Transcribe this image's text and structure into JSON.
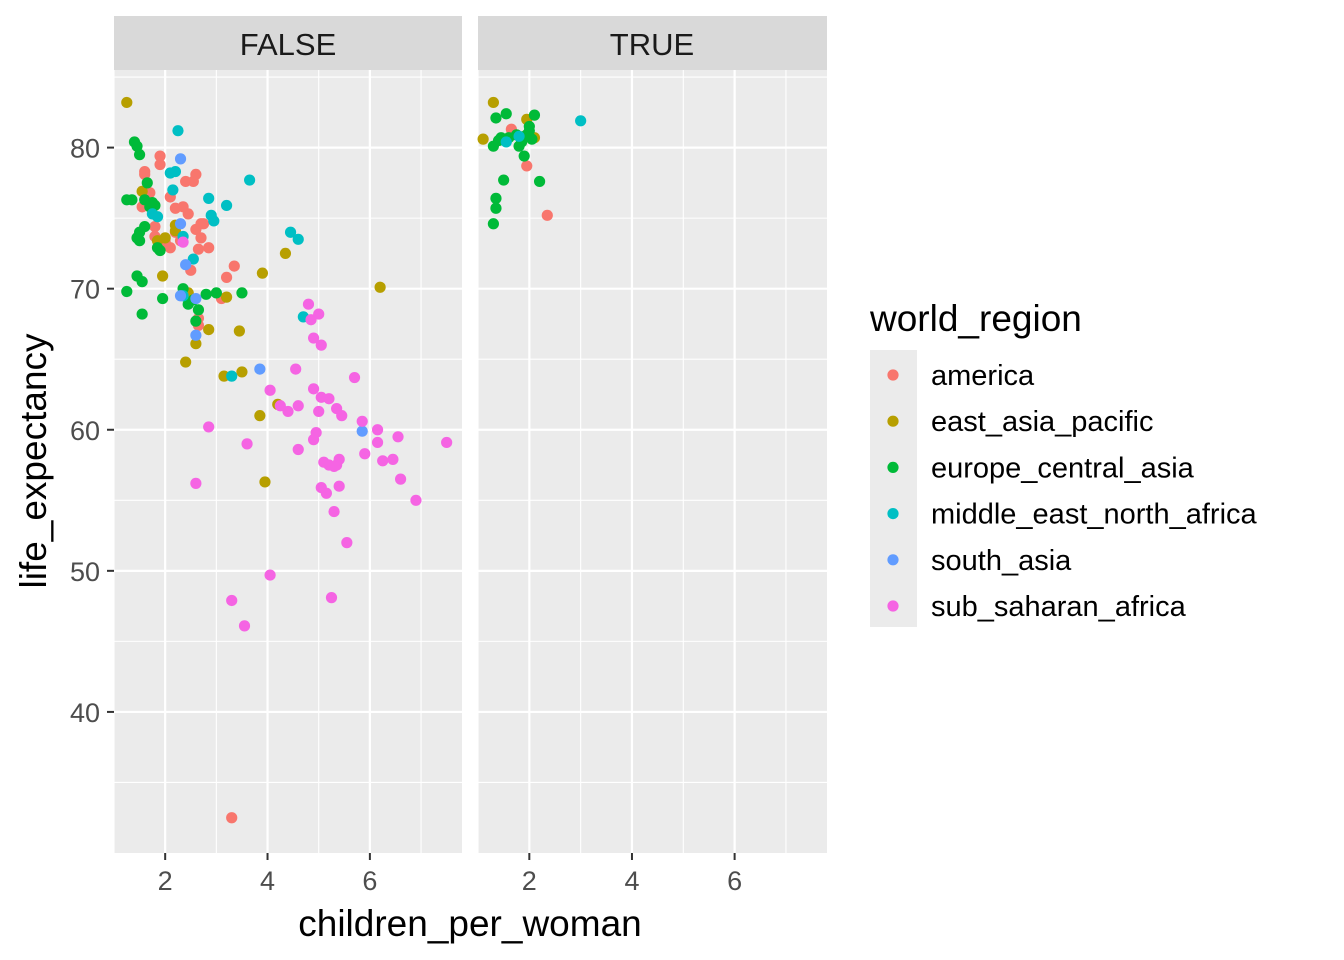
{
  "chart_data": {
    "type": "scatter",
    "xlabel": "children_per_woman",
    "ylabel": "life_expectancy",
    "xlim": [
      1.0,
      7.8
    ],
    "ylim": [
      30.0,
      85.5
    ],
    "x_ticks": [
      2,
      4,
      6
    ],
    "y_ticks": [
      40,
      50,
      60,
      70,
      80
    ],
    "grid": true,
    "legend": {
      "title": "world_region",
      "position": "right"
    },
    "facets": [
      "FALSE",
      "TRUE"
    ],
    "colors": {
      "america": "#F8766D",
      "east_asia_pacific": "#B79F00",
      "europe_central_asia": "#00BA38",
      "middle_east_north_africa": "#00BFC4",
      "south_asia": "#619CFF",
      "sub_saharan_africa": "#F564E3"
    },
    "series": [
      {
        "name": "america",
        "points": [
          [
            1.6,
            78.3
          ],
          [
            1.7,
            76.8
          ],
          [
            1.8,
            74.4
          ],
          [
            1.9,
            78.8
          ],
          [
            1.9,
            79.4
          ],
          [
            2.0,
            73.3
          ],
          [
            2.1,
            76.5
          ],
          [
            2.1,
            72.9
          ],
          [
            2.2,
            74.0
          ],
          [
            2.2,
            75.7
          ],
          [
            2.3,
            73.4
          ],
          [
            2.35,
            75.8
          ],
          [
            2.4,
            77.6
          ],
          [
            2.45,
            75.3
          ],
          [
            2.5,
            71.3
          ],
          [
            2.55,
            77.6
          ],
          [
            2.6,
            78.1
          ],
          [
            2.6,
            74.2
          ],
          [
            2.65,
            72.8
          ],
          [
            2.7,
            74.6
          ],
          [
            2.7,
            73.6
          ],
          [
            2.75,
            74.6
          ],
          [
            2.85,
            72.9
          ],
          [
            2.65,
            67.9
          ],
          [
            2.65,
            67.4
          ],
          [
            3.1,
            69.3
          ],
          [
            3.2,
            70.8
          ],
          [
            3.35,
            71.6
          ],
          [
            3.3,
            32.5
          ],
          [
            1.55,
            75.8
          ],
          [
            1.8,
            73.7
          ],
          [
            1.6,
            78.1
          ],
          [
            1.65,
            81.3
          ],
          [
            1.95,
            78.7
          ],
          [
            2.35,
            75.2
          ]
        ]
      },
      {
        "name": "east_asia_pacific",
        "points": [
          [
            1.25,
            83.2
          ],
          [
            1.55,
            76.9
          ],
          [
            1.85,
            73.4
          ],
          [
            1.95,
            70.9
          ],
          [
            2.0,
            73.6
          ],
          [
            2.2,
            74.1
          ],
          [
            2.2,
            74.5
          ],
          [
            2.4,
            64.8
          ],
          [
            2.45,
            69.7
          ],
          [
            2.6,
            66.1
          ],
          [
            2.85,
            67.1
          ],
          [
            3.15,
            63.8
          ],
          [
            3.2,
            69.4
          ],
          [
            3.45,
            67.0
          ],
          [
            3.5,
            64.1
          ],
          [
            3.85,
            61.0
          ],
          [
            3.9,
            71.1
          ],
          [
            3.95,
            56.3
          ],
          [
            4.2,
            61.8
          ],
          [
            4.35,
            72.5
          ],
          [
            6.2,
            70.1
          ],
          [
            1.1,
            80.6
          ],
          [
            1.3,
            83.2
          ],
          [
            1.9,
            80.8
          ],
          [
            1.95,
            82.0
          ],
          [
            2.1,
            80.7
          ]
        ]
      },
      {
        "name": "europe_central_asia",
        "points": [
          [
            1.25,
            76.3
          ],
          [
            1.25,
            69.8
          ],
          [
            1.35,
            76.3
          ],
          [
            1.4,
            80.4
          ],
          [
            1.45,
            80.1
          ],
          [
            1.45,
            70.9
          ],
          [
            1.45,
            73.6
          ],
          [
            1.5,
            73.4
          ],
          [
            1.5,
            74.0
          ],
          [
            1.5,
            79.5
          ],
          [
            1.55,
            70.5
          ],
          [
            1.55,
            68.2
          ],
          [
            1.6,
            76.3
          ],
          [
            1.6,
            74.4
          ],
          [
            1.65,
            77.5
          ],
          [
            1.7,
            75.8
          ],
          [
            1.75,
            76.1
          ],
          [
            1.8,
            75.9
          ],
          [
            1.85,
            72.9
          ],
          [
            1.9,
            72.7
          ],
          [
            1.95,
            69.3
          ],
          [
            2.35,
            70.0
          ],
          [
            2.45,
            68.9
          ],
          [
            2.55,
            69.2
          ],
          [
            2.6,
            67.7
          ],
          [
            2.65,
            68.5
          ],
          [
            2.8,
            69.6
          ],
          [
            3.0,
            69.7
          ],
          [
            3.5,
            69.7
          ],
          [
            1.3,
            74.6
          ],
          [
            1.35,
            75.7
          ],
          [
            1.35,
            76.4
          ],
          [
            1.3,
            80.1
          ],
          [
            1.35,
            82.1
          ],
          [
            1.4,
            80.5
          ],
          [
            1.45,
            80.7
          ],
          [
            1.5,
            77.7
          ],
          [
            1.55,
            82.4
          ],
          [
            1.6,
            80.7
          ],
          [
            1.75,
            80.9
          ],
          [
            1.8,
            80.1
          ],
          [
            1.85,
            80.4
          ],
          [
            1.9,
            79.4
          ],
          [
            1.95,
            80.9
          ],
          [
            2.0,
            81.2
          ],
          [
            2.0,
            81.5
          ],
          [
            2.1,
            82.3
          ],
          [
            2.2,
            77.6
          ],
          [
            2.05,
            80.6
          ]
        ]
      },
      {
        "name": "middle_east_north_africa",
        "points": [
          [
            1.75,
            75.3
          ],
          [
            1.85,
            75.1
          ],
          [
            2.1,
            78.2
          ],
          [
            2.15,
            77.0
          ],
          [
            2.2,
            78.3
          ],
          [
            2.25,
            81.2
          ],
          [
            2.35,
            73.7
          ],
          [
            2.35,
            69.5
          ],
          [
            2.55,
            72.1
          ],
          [
            2.85,
            76.4
          ],
          [
            2.9,
            75.2
          ],
          [
            2.95,
            74.8
          ],
          [
            3.2,
            75.9
          ],
          [
            3.3,
            63.8
          ],
          [
            3.65,
            77.7
          ],
          [
            4.45,
            74.0
          ],
          [
            4.6,
            73.5
          ],
          [
            4.7,
            68.0
          ],
          [
            1.55,
            80.4
          ],
          [
            1.8,
            80.8
          ],
          [
            3.0,
            81.9
          ]
        ]
      },
      {
        "name": "south_asia",
        "points": [
          [
            2.3,
            79.2
          ],
          [
            2.3,
            74.6
          ],
          [
            2.4,
            71.7
          ],
          [
            2.6,
            69.3
          ],
          [
            2.6,
            66.7
          ],
          [
            3.85,
            64.3
          ],
          [
            5.85,
            59.9
          ],
          [
            2.3,
            69.5
          ]
        ]
      },
      {
        "name": "sub_saharan_africa",
        "points": [
          [
            2.35,
            73.3
          ],
          [
            2.6,
            56.2
          ],
          [
            2.85,
            60.2
          ],
          [
            3.3,
            47.9
          ],
          [
            3.55,
            46.1
          ],
          [
            3.6,
            59.0
          ],
          [
            4.05,
            62.8
          ],
          [
            4.05,
            49.7
          ],
          [
            4.25,
            61.7
          ],
          [
            4.4,
            61.3
          ],
          [
            4.55,
            64.3
          ],
          [
            4.6,
            58.6
          ],
          [
            4.6,
            61.7
          ],
          [
            4.8,
            68.9
          ],
          [
            4.85,
            67.8
          ],
          [
            4.9,
            59.3
          ],
          [
            4.9,
            66.5
          ],
          [
            4.9,
            62.9
          ],
          [
            4.95,
            59.8
          ],
          [
            5.0,
            68.2
          ],
          [
            5.0,
            61.3
          ],
          [
            5.05,
            66.0
          ],
          [
            5.05,
            55.9
          ],
          [
            5.1,
            57.7
          ],
          [
            5.15,
            55.5
          ],
          [
            5.2,
            57.5
          ],
          [
            5.2,
            62.2
          ],
          [
            5.25,
            48.1
          ],
          [
            5.3,
            54.2
          ],
          [
            5.35,
            57.5
          ],
          [
            5.35,
            61.5
          ],
          [
            5.4,
            57.9
          ],
          [
            5.4,
            56.0
          ],
          [
            5.45,
            61.0
          ],
          [
            5.55,
            52.0
          ],
          [
            5.7,
            63.7
          ],
          [
            5.85,
            60.6
          ],
          [
            5.9,
            58.3
          ],
          [
            6.15,
            60.0
          ],
          [
            6.15,
            59.1
          ],
          [
            6.25,
            57.8
          ],
          [
            6.45,
            57.9
          ],
          [
            6.55,
            59.5
          ],
          [
            6.6,
            56.5
          ],
          [
            6.9,
            55.0
          ],
          [
            7.5,
            59.1
          ],
          [
            5.05,
            62.3
          ],
          [
            5.3,
            57.4
          ]
        ]
      }
    ],
    "panel_of_point": "index-split: points listed after the marker index in facet_split belong to panel TRUE",
    "facet_split": {
      "america": 32,
      "east_asia_pacific": 21,
      "europe_central_asia": 29,
      "middle_east_north_africa": 18,
      "south_asia": 8,
      "sub_saharan_africa": 48
    }
  }
}
